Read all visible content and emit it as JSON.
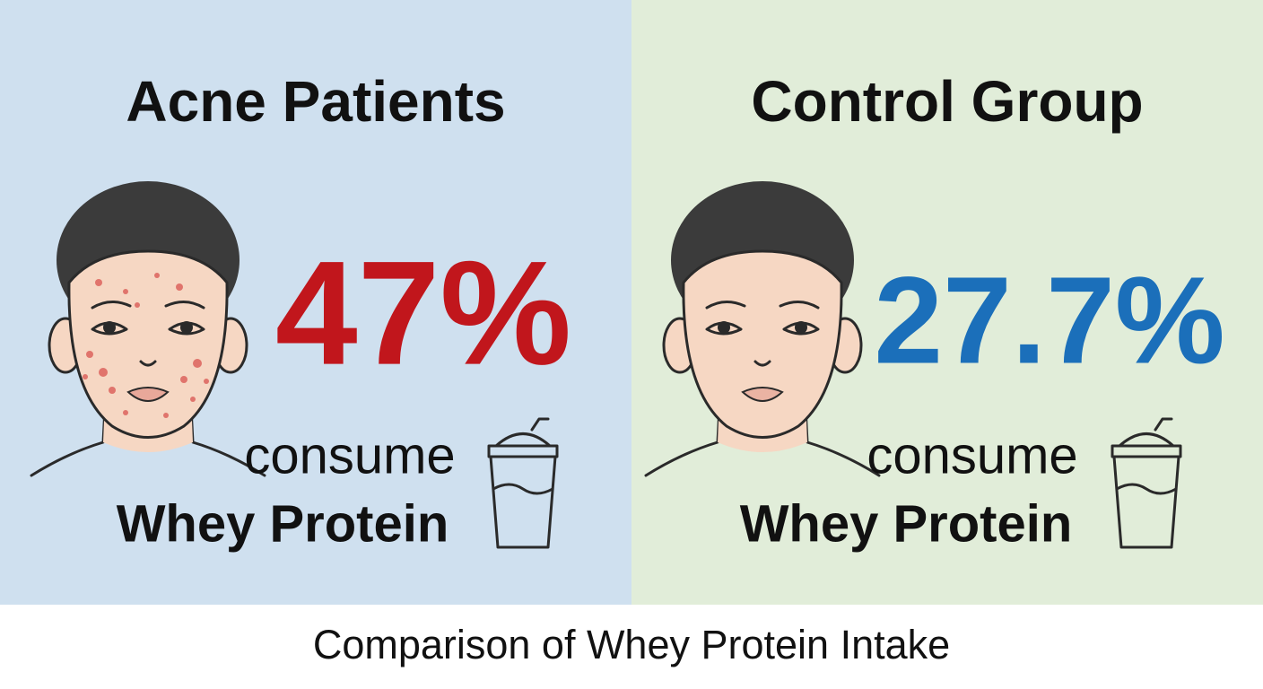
{
  "panels": [
    {
      "title": "Acne Patients",
      "percentage": "47%",
      "verb": "consume",
      "product": "Whey Protein"
    },
    {
      "title": "Control Group",
      "percentage": "27.7%",
      "verb": "consume",
      "product": "Whey Protein"
    }
  ],
  "caption": "Comparison of Whey Protein Intake"
}
